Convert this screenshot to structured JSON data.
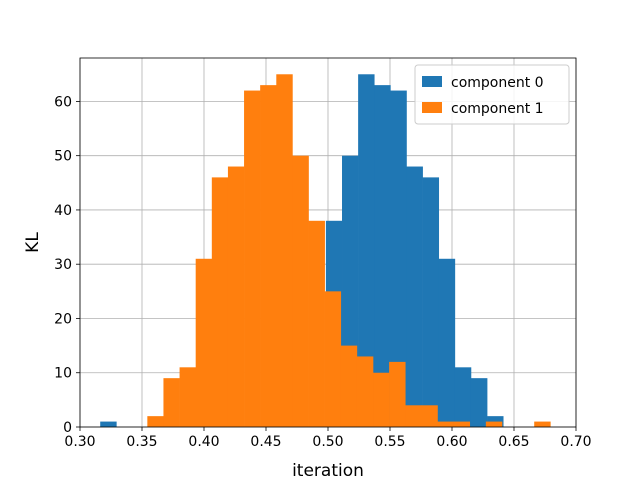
{
  "chart_data": {
    "type": "histogram",
    "title": "",
    "xlabel": "iteration",
    "ylabel": "KL",
    "xlim": [
      0.3,
      0.7
    ],
    "ylim": [
      0,
      68
    ],
    "xticks": [
      "0.30",
      "0.35",
      "0.40",
      "0.45",
      "0.50",
      "0.55",
      "0.60",
      "0.65",
      "0.70"
    ],
    "yticks": [
      "0",
      "10",
      "20",
      "30",
      "40",
      "50",
      "60"
    ],
    "grid": true,
    "legend_position": "top-right",
    "series": [
      {
        "name": "component 0",
        "color": "#1f77b4",
        "bins": [
          {
            "x0": 0.3163,
            "x1": 0.3293,
            "count": 1
          },
          {
            "x0": 0.3293,
            "x1": 0.3423,
            "count": 0
          },
          {
            "x0": 0.3423,
            "x1": 0.3553,
            "count": 0
          },
          {
            "x0": 0.3553,
            "x1": 0.3683,
            "count": 0
          },
          {
            "x0": 0.3683,
            "x1": 0.3813,
            "count": 0
          },
          {
            "x0": 0.3813,
            "x1": 0.3943,
            "count": 0
          },
          {
            "x0": 0.3943,
            "x1": 0.4073,
            "count": 0
          },
          {
            "x0": 0.4073,
            "x1": 0.4203,
            "count": 0
          },
          {
            "x0": 0.4203,
            "x1": 0.4333,
            "count": 0
          },
          {
            "x0": 0.4333,
            "x1": 0.4463,
            "count": 0
          },
          {
            "x0": 0.4463,
            "x1": 0.4593,
            "count": 0
          },
          {
            "x0": 0.4593,
            "x1": 0.4723,
            "count": 0
          },
          {
            "x0": 0.4723,
            "x1": 0.4853,
            "count": 0
          },
          {
            "x0": 0.4853,
            "x1": 0.4983,
            "count": 0
          },
          {
            "x0": 0.4983,
            "x1": 0.5113,
            "count": 38
          },
          {
            "x0": 0.5113,
            "x1": 0.5243,
            "count": 50
          },
          {
            "x0": 0.5243,
            "x1": 0.5373,
            "count": 65
          },
          {
            "x0": 0.5373,
            "x1": 0.5503,
            "count": 63
          },
          {
            "x0": 0.5503,
            "x1": 0.5633,
            "count": 62
          },
          {
            "x0": 0.5633,
            "x1": 0.5763,
            "count": 48
          },
          {
            "x0": 0.5763,
            "x1": 0.5893,
            "count": 46
          },
          {
            "x0": 0.5893,
            "x1": 0.6023,
            "count": 31
          },
          {
            "x0": 0.6023,
            "x1": 0.6153,
            "count": 11
          },
          {
            "x0": 0.6153,
            "x1": 0.6283,
            "count": 9
          },
          {
            "x0": 0.6283,
            "x1": 0.6413,
            "count": 2
          }
        ]
      },
      {
        "name": "component 1",
        "color": "#ff7f0e",
        "bins": [
          {
            "x0": 0.3543,
            "x1": 0.3673,
            "count": 2
          },
          {
            "x0": 0.3673,
            "x1": 0.3803,
            "count": 9
          },
          {
            "x0": 0.3803,
            "x1": 0.3933,
            "count": 11
          },
          {
            "x0": 0.3933,
            "x1": 0.4063,
            "count": 31
          },
          {
            "x0": 0.4063,
            "x1": 0.4193,
            "count": 46
          },
          {
            "x0": 0.4193,
            "x1": 0.4323,
            "count": 48
          },
          {
            "x0": 0.4323,
            "x1": 0.4453,
            "count": 62
          },
          {
            "x0": 0.4453,
            "x1": 0.4583,
            "count": 63
          },
          {
            "x0": 0.4583,
            "x1": 0.4713,
            "count": 65
          },
          {
            "x0": 0.4713,
            "x1": 0.4843,
            "count": 50
          },
          {
            "x0": 0.4843,
            "x1": 0.4973,
            "count": 38
          },
          {
            "x0": 0.4973,
            "x1": 0.5103,
            "count": 25
          },
          {
            "x0": 0.5103,
            "x1": 0.5233,
            "count": 15
          },
          {
            "x0": 0.5233,
            "x1": 0.5363,
            "count": 13
          },
          {
            "x0": 0.5363,
            "x1": 0.5493,
            "count": 10
          },
          {
            "x0": 0.5493,
            "x1": 0.5623,
            "count": 12
          },
          {
            "x0": 0.5623,
            "x1": 0.5753,
            "count": 4
          },
          {
            "x0": 0.5753,
            "x1": 0.5883,
            "count": 4
          },
          {
            "x0": 0.5883,
            "x1": 0.6013,
            "count": 1
          },
          {
            "x0": 0.6013,
            "x1": 0.6143,
            "count": 1
          },
          {
            "x0": 0.6143,
            "x1": 0.6273,
            "count": 0
          },
          {
            "x0": 0.6273,
            "x1": 0.6403,
            "count": 1
          },
          {
            "x0": 0.6403,
            "x1": 0.6533,
            "count": 0
          },
          {
            "x0": 0.6533,
            "x1": 0.6663,
            "count": 0
          },
          {
            "x0": 0.6663,
            "x1": 0.6793,
            "count": 1
          }
        ]
      }
    ]
  }
}
